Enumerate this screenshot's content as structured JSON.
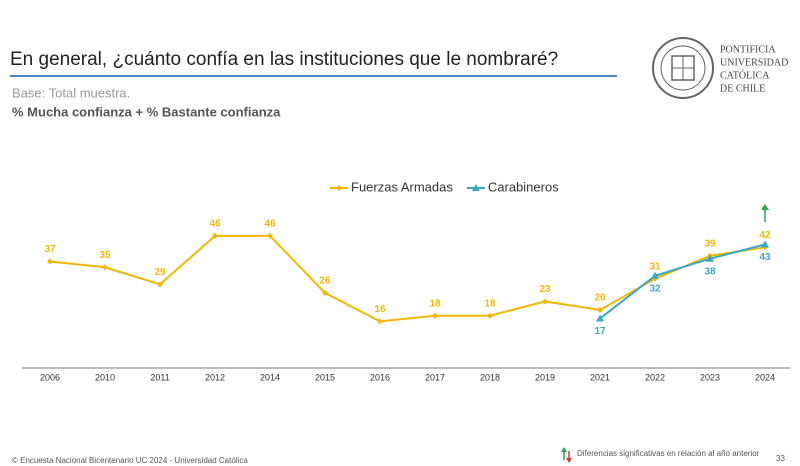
{
  "header": {
    "title": "En general, ¿cuánto confía en las instituciones que le nombraré?",
    "logo": [
      "PONTIFICIA",
      "UNIVERSIDAD",
      "CATÓLICA",
      "DE CHILE"
    ]
  },
  "subtitle": "Base: Total muestra.",
  "measure": "% Mucha confianza + % Bastante confianza",
  "chart_data": {
    "type": "line",
    "categories": [
      "2006",
      "2010",
      "2011",
      "2012",
      "2014",
      "2015",
      "2016",
      "2017",
      "2018",
      "2019",
      "2021",
      "2022",
      "2023",
      "2024"
    ],
    "series": [
      {
        "name": "Fuerzas Armadas",
        "color": "#f2b705",
        "marker": "diamond",
        "label_side": "above",
        "values": [
          37,
          35,
          29,
          46,
          46,
          26,
          16,
          18,
          18,
          23,
          20,
          31,
          39,
          42
        ]
      },
      {
        "name": "Carabineros",
        "color": "#3fa7c4",
        "marker": "triangle",
        "label_side": "below",
        "values": [
          null,
          null,
          null,
          null,
          null,
          null,
          null,
          null,
          null,
          null,
          17,
          32,
          38,
          43
        ]
      }
    ],
    "legend": "top"
  },
  "footer": {
    "source": "© Encuesta Nacional Bicentenario UC 2024 - Universidad Católica",
    "note": "Diferencias significativas en relación al año anterior",
    "page": "33"
  }
}
